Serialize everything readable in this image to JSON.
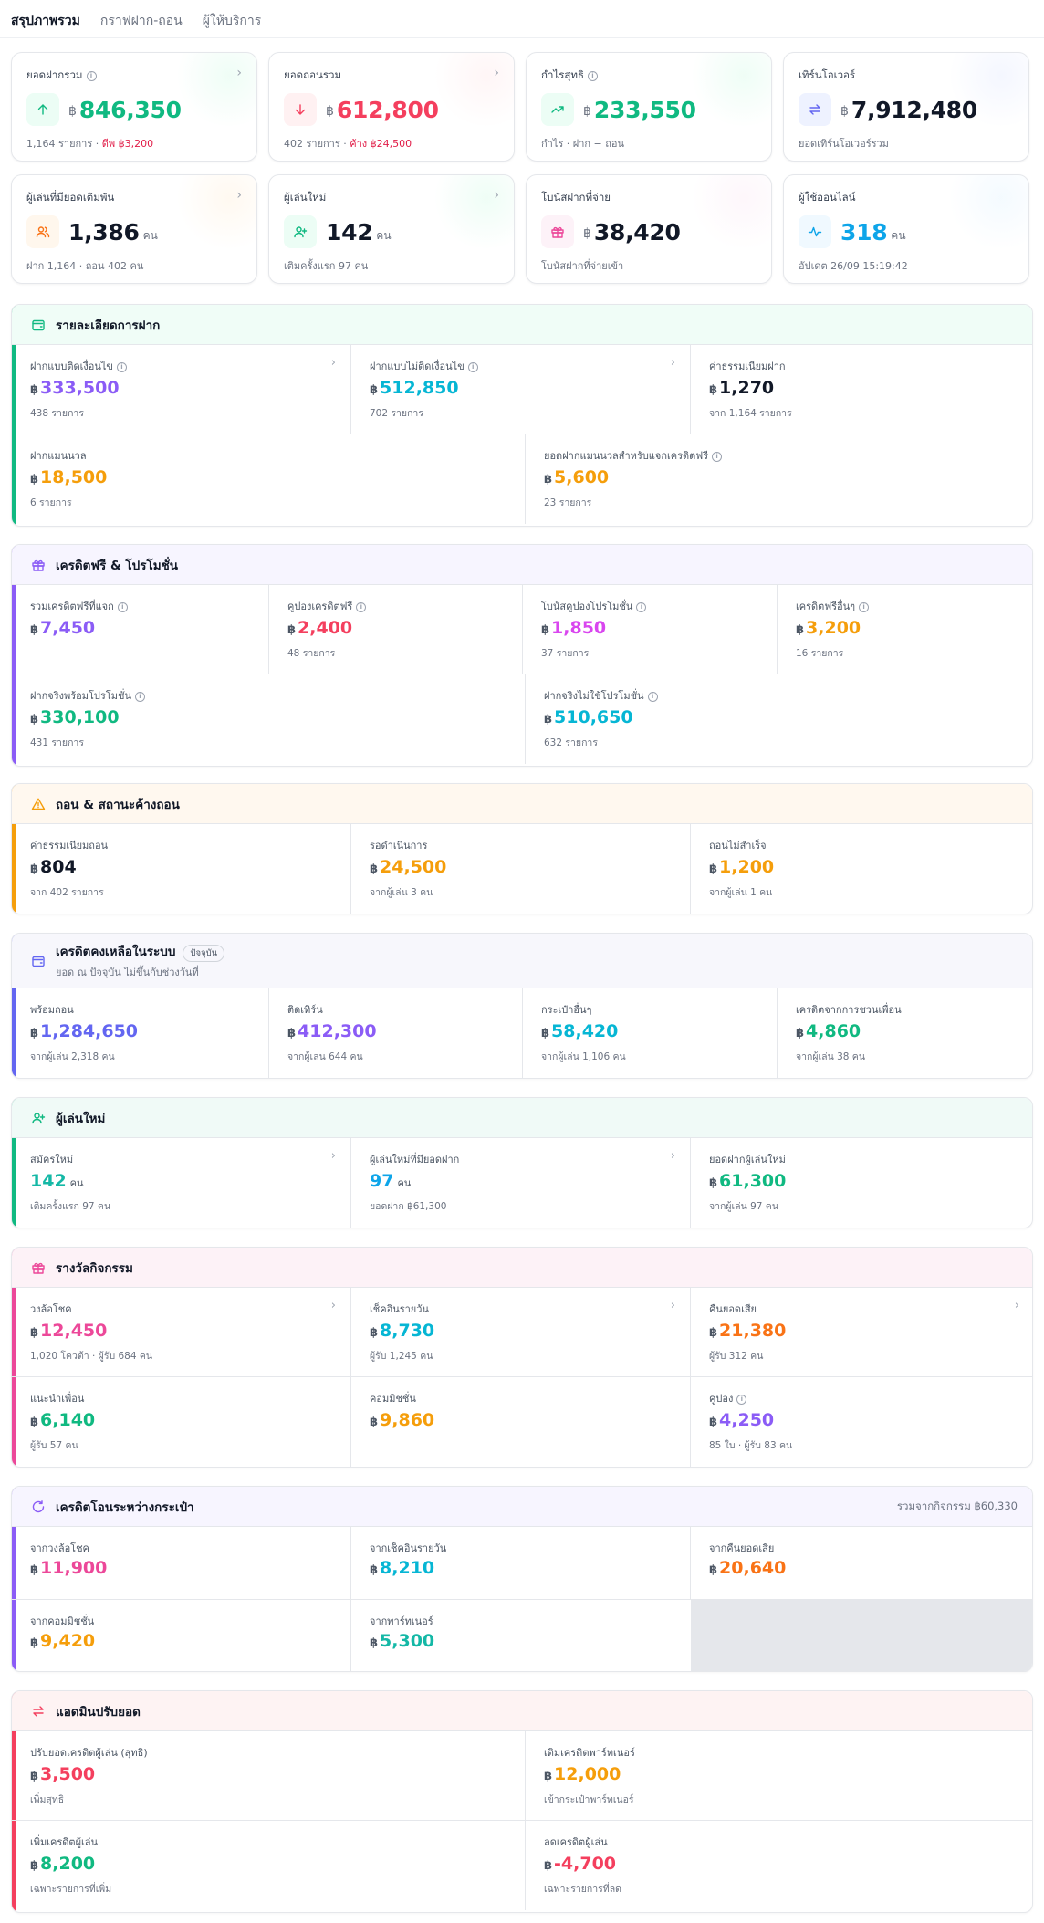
{
  "tabs": [
    "สรุปภาพรวม",
    "กราฟฝาก-ถอน",
    "ผู้ให้บริการ"
  ],
  "currency": "฿",
  "stats": [
    {
      "label": "ยอดฝากรวม",
      "info": true,
      "chev": true,
      "icon": "arrow-up-icon",
      "color": "#10b981",
      "iconbg": "#ecfdf5",
      "glow": "#d1fae5",
      "cur": "฿",
      "value": "846,350",
      "unit": "",
      "sub": "1,164 รายการ · ",
      "sub2": "ดีพ ฿3,200",
      "sub2color": "#e11d48"
    },
    {
      "label": "ยอดถอนรวม",
      "info": false,
      "chev": true,
      "icon": "arrow-down-icon",
      "color": "#f43f5e",
      "iconbg": "#fff1f2",
      "glow": "#ffe4e6",
      "cur": "฿",
      "value": "612,800",
      "unit": "",
      "sub": "402 รายการ · ",
      "sub2": "ค้าง ฿24,500",
      "sub2color": "#e11d48"
    },
    {
      "label": "กำไรสุทธิ",
      "info": true,
      "chev": false,
      "icon": "trend-up-icon",
      "color": "#10b981",
      "iconbg": "#ecfdf5",
      "glow": "#d1fae5",
      "cur": "฿",
      "value": "233,550",
      "unit": "",
      "sub": "กำไร · ฝาก − ถอน",
      "sub2": "",
      "sub2color": ""
    },
    {
      "label": "เทิร์นโอเวอร์",
      "info": false,
      "chev": false,
      "icon": "swap-icon",
      "color": "#111827",
      "iconbg": "#eef2ff",
      "glow": "#e0e7ff",
      "cur": "฿",
      "value": "7,912,480",
      "unit": "",
      "sub": "ยอดเทิร์นโอเวอร์รวม",
      "sub2": "",
      "sub2color": ""
    },
    {
      "label": "ผู้เล่นที่มียอดเติมพัน",
      "info": false,
      "chev": true,
      "icon": "users-icon",
      "color": "#111827",
      "iconbg": "#fff7ed",
      "glow": "#ffedd5",
      "cur": "",
      "value": "1,386",
      "unit": "คน",
      "sub": "ฝาก 1,164 · ถอน 402 คน",
      "sub2": "",
      "sub2color": ""
    },
    {
      "label": "ผู้เล่นใหม่",
      "info": false,
      "chev": true,
      "icon": "user-plus-icon",
      "color": "#111827",
      "iconbg": "#ecfdf5",
      "glow": "#d1fae5",
      "cur": "",
      "value": "142",
      "unit": "คน",
      "sub": "เติมครั้งแรก 97 คน",
      "sub2": "",
      "sub2color": ""
    },
    {
      "label": "โบนัสฝากที่จ่าย",
      "info": false,
      "chev": false,
      "icon": "gift-icon",
      "color": "#111827",
      "iconbg": "#fdf2f8",
      "glow": "#fce7f3",
      "cur": "฿",
      "value": "38,420",
      "unit": "",
      "sub": "โบนัสฝากที่จ่ายเข้า",
      "sub2": "",
      "sub2color": ""
    },
    {
      "label": "ผู้ใช้ออนไลน์",
      "info": false,
      "chev": false,
      "icon": "pulse-icon",
      "color": "#0ea5e9",
      "iconbg": "#f0f9ff",
      "glow": "#e0f2fe",
      "cur": "",
      "value": "318",
      "unit": "คน",
      "sub": "อัปเดต 26/09 15:19:42",
      "sub2": "",
      "sub2color": ""
    }
  ],
  "sections": [
    {
      "title": "รายละเอียดการฝาก",
      "icon": "wallet-icon",
      "bar": "#10b981",
      "hdrbg": "#f0fdf7",
      "cells": [
        {
          "label": "ฝากแบบติดเงื่อนไข",
          "info": true,
          "chev": true,
          "value": "333,500",
          "color": "#8b5cf6",
          "sub": "438 รายการ"
        },
        {
          "label": "ฝากแบบไม่ติดเงื่อนไข",
          "info": true,
          "chev": true,
          "value": "512,850",
          "color": "#06b6d4",
          "sub": "702 รายการ"
        },
        {
          "label": "ค่าธรรมเนียมฝาก",
          "value": "1,270",
          "color": "#111827",
          "sub": "จาก 1,164 รายการ"
        },
        {
          "label": "ฝากแมนนวล",
          "value": "18,500",
          "color": "#f59e0b",
          "sub": "6 รายการ"
        },
        {
          "label": "ยอดฝากแมนนวลสำหรับแจกเครดิตฟรี",
          "info": true,
          "value": "5,600",
          "color": "#f59e0b",
          "sub": "23 รายการ"
        }
      ]
    },
    {
      "title": "เครดิตฟรี & โปรโมชั่น",
      "icon": "gift-icon",
      "bar": "#8b5cf6",
      "hdrbg": "#f7f5ff",
      "cells": [
        {
          "label": "รวมเครดิตฟรีที่แจก",
          "info": true,
          "value": "7,450",
          "color": "#8b5cf6",
          "sub": ""
        },
        {
          "label": "คูปองเครดิตฟรี",
          "info": true,
          "value": "2,400",
          "color": "#f43f5e",
          "sub": "48 รายการ"
        },
        {
          "label": "โบนัสคูปองโปรโมชั่น",
          "info": true,
          "value": "1,850",
          "color": "#d946ef",
          "sub": "37 รายการ"
        },
        {
          "label": "เครดิตฟรีอื่นๆ",
          "info": true,
          "value": "3,200",
          "color": "#f59e0b",
          "sub": "16 รายการ"
        },
        {
          "label": "ฝากจริงพร้อมโปรโมชั่น",
          "info": true,
          "value": "330,100",
          "color": "#10b981",
          "sub": "431 รายการ"
        },
        {
          "label": "ฝากจริงไม่ใช้โปรโมชั่น",
          "info": true,
          "value": "510,650",
          "color": "#06b6d4",
          "sub": "632 รายการ"
        }
      ]
    },
    {
      "title": "ถอน & สถานะค้างถอน",
      "icon": "warning-icon",
      "bar": "#f59e0b",
      "hdrbg": "#fff8ef",
      "cells": [
        {
          "label": "ค่าธรรมเนียมถอน",
          "value": "804",
          "color": "#111827",
          "sub": "จาก 402 รายการ"
        },
        {
          "label": "รอดำเนินการ",
          "value": "24,500",
          "color": "#f59e0b",
          "sub": "จากผู้เล่น 3 คน"
        },
        {
          "label": "ถอนไม่สำเร็จ",
          "value": "1,200",
          "color": "#f59e0b",
          "sub": "จากผู้เล่น 1 คน"
        }
      ]
    },
    {
      "title": "เครดิตคงเหลือในระบบ",
      "badge": "ปัจจุบัน",
      "subtitle": "ยอด ณ ปัจจุบัน ไม่ขึ้นกับช่วงวันที่",
      "icon": "wallet-icon",
      "bar": "#6366f1",
      "hdrbg": "#f7f7fc",
      "cells": [
        {
          "label": "พร้อมถอน",
          "value": "1,284,650",
          "color": "#6366f1",
          "sub": "จากผู้เล่น 2,318 คน"
        },
        {
          "label": "ติดเทิร์น",
          "value": "412,300",
          "color": "#8b5cf6",
          "sub": "จากผู้เล่น 644 คน"
        },
        {
          "label": "กระเป๋าอื่นๆ",
          "value": "58,420",
          "color": "#06b6d4",
          "sub": "จากผู้เล่น 1,106 คน"
        },
        {
          "label": "เครดิตจากการชวนเพื่อน",
          "value": "4,860",
          "color": "#10b981",
          "sub": "จากผู้เล่น 38 คน"
        }
      ]
    },
    {
      "title": "ผู้เล่นใหม่",
      "icon": "user-plus-icon",
      "bar": "#10b981",
      "hdrbg": "#f0faf7",
      "cells": [
        {
          "label": "สมัครใหม่",
          "chev": true,
          "value": "142",
          "unit": "คน",
          "nocur": true,
          "color": "#14b8a6",
          "sub": "เติมครั้งแรก 97 คน"
        },
        {
          "label": "ผู้เล่นใหม่ที่มียอดฝาก",
          "chev": true,
          "value": "97",
          "unit": "คน",
          "nocur": true,
          "color": "#0ea5e9",
          "sub": "ยอดฝาก ฿61,300"
        },
        {
          "label": "ยอดฝากผู้เล่นใหม่",
          "value": "61,300",
          "color": "#10b981",
          "sub": "จากผู้เล่น 97 คน"
        }
      ]
    },
    {
      "title": "รางวัลกิจกรรม",
      "icon": "gift-icon",
      "bar": "#ec4899",
      "hdrbg": "#fdf2f7",
      "cells": [
        {
          "label": "วงล้อโชค",
          "chev": true,
          "value": "12,450",
          "color": "#ec4899",
          "sub": "1,020 โควต้า · ผู้รับ 684 คน"
        },
        {
          "label": "เช็คอินรายวัน",
          "chev": true,
          "value": "8,730",
          "color": "#06b6d4",
          "sub": "ผู้รับ 1,245 คน"
        },
        {
          "label": "คืนยอดเสีย",
          "chev": true,
          "value": "21,380",
          "color": "#f97316",
          "sub": "ผู้รับ 312 คน"
        },
        {
          "label": "แนะนำเพื่อน",
          "value": "6,140",
          "color": "#10b981",
          "sub": "ผู้รับ 57 คน"
        },
        {
          "label": "คอมมิชชั่น",
          "value": "9,860",
          "color": "#f59e0b",
          "sub": ""
        },
        {
          "label": "คูปอง",
          "info": true,
          "value": "4,250",
          "color": "#8b5cf6",
          "sub": "85 ใบ · ผู้รับ 83 คน"
        }
      ]
    },
    {
      "title": "เครดิตโอนระหว่างกระเป๋า",
      "right": "รวมจากกิจกรรม ฿60,330",
      "icon": "refresh-icon",
      "bar": "#8b5cf6",
      "hdrbg": "#f7f5ff",
      "cells": [
        {
          "label": "จากวงล้อโชค",
          "value": "11,900",
          "color": "#ec4899",
          "sub": ""
        },
        {
          "label": "จากเช็คอินรายวัน",
          "value": "8,210",
          "color": "#06b6d4",
          "sub": ""
        },
        {
          "label": "จากคืนยอดเสีย",
          "value": "20,640",
          "color": "#f97316",
          "sub": ""
        },
        {
          "label": "จากคอมมิชชั่น",
          "value": "9,420",
          "color": "#f59e0b",
          "sub": ""
        },
        {
          "label": "จากพาร์ทเนอร์",
          "value": "5,300",
          "color": "#14b8a6",
          "sub": ""
        }
      ]
    },
    {
      "title": "แอดมินปรับยอด",
      "icon": "swap-icon",
      "bar": "#f43f5e",
      "hdrbg": "#fef3f3",
      "cells": [
        {
          "label": "ปรับยอดเครดิตผู้เล่น (สุทธิ)",
          "value": "3,500",
          "color": "#f43f5e",
          "sub": "เพิ่มสุทธิ"
        },
        {
          "label": "เติมเครดิตพาร์ทเนอร์",
          "value": "12,000",
          "color": "#f59e0b",
          "sub": "เข้ากระเป๋าพาร์ทเนอร์"
        },
        {
          "label": "เพิ่มเครดิตผู้เล่น",
          "value": "8,200",
          "color": "#10b981",
          "sub": "เฉพาะรายการที่เพิ่ม"
        },
        {
          "label": "ลดเครดิตผู้เล่น",
          "value": "-4,700",
          "color": "#f43f5e",
          "sub": "เฉพาะรายการที่ลด"
        }
      ]
    }
  ]
}
